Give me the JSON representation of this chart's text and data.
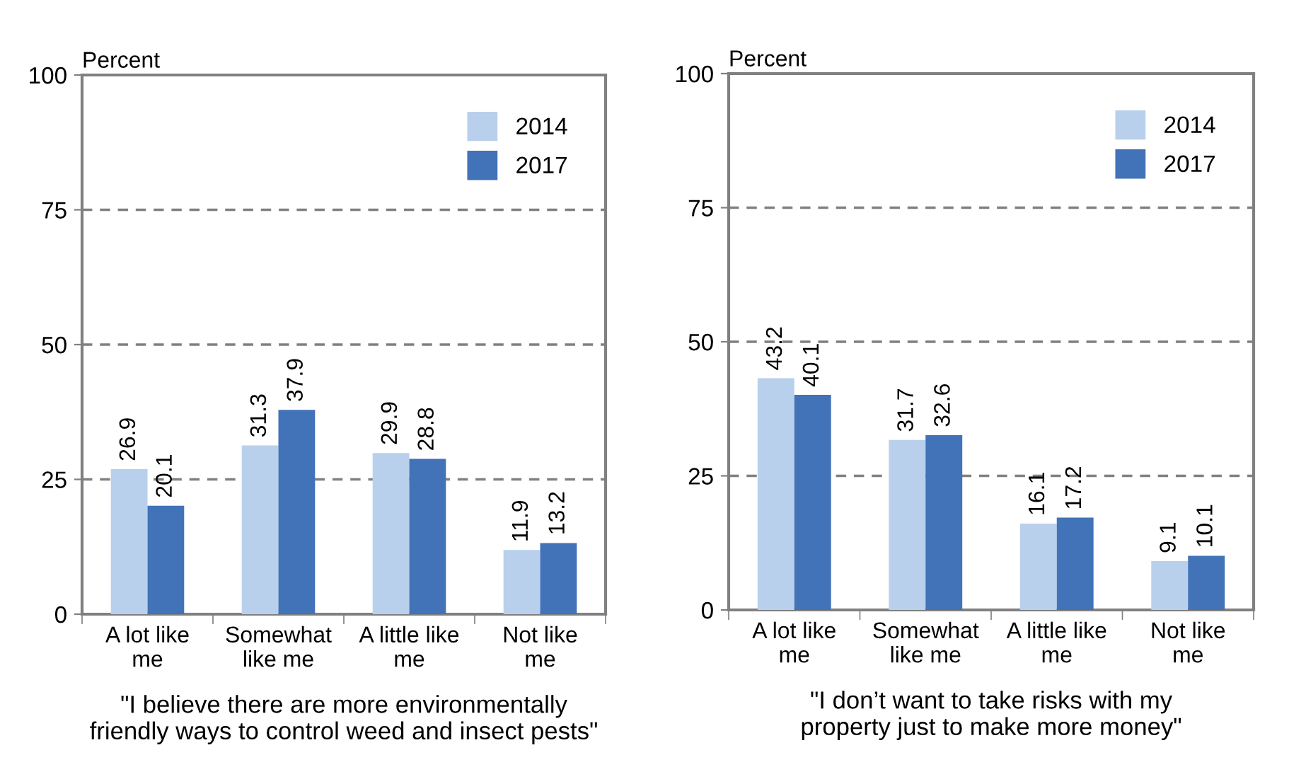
{
  "chart_data": [
    {
      "type": "bar",
      "ylabel": "Percent",
      "xlabel": "\"I believe there are more environmentally\nfriendly ways to control weed and insect pests\"",
      "categories": [
        "A lot like\nme",
        "Somewhat\nlike me",
        "A little like\nme",
        "Not like\nme"
      ],
      "series": [
        {
          "name": "2014",
          "color": "#b9d0ec",
          "values": [
            26.9,
            31.3,
            29.9,
            11.9
          ]
        },
        {
          "name": "2017",
          "color": "#4272b8",
          "values": [
            20.1,
            37.9,
            28.8,
            13.2
          ]
        }
      ],
      "ylim": [
        0,
        100
      ],
      "yticks": [
        0,
        25,
        50,
        75,
        100
      ],
      "grid": "y",
      "legend": "top right",
      "data_labels": true
    },
    {
      "type": "bar",
      "ylabel": "Percent",
      "xlabel": "\"I don’t want to take risks with my\nproperty just to make more money\"",
      "categories": [
        "A lot like\nme",
        "Somewhat\nlike me",
        "A little like\nme",
        "Not like\nme"
      ],
      "series": [
        {
          "name": "2014",
          "color": "#b9d0ec",
          "values": [
            43.2,
            31.7,
            16.1,
            9.1
          ]
        },
        {
          "name": "2017",
          "color": "#4272b8",
          "values": [
            40.1,
            32.6,
            17.2,
            10.1
          ]
        }
      ],
      "ylim": [
        0,
        100
      ],
      "yticks": [
        0,
        25,
        50,
        75,
        100
      ],
      "grid": "y",
      "legend": "top right",
      "data_labels": true
    }
  ]
}
